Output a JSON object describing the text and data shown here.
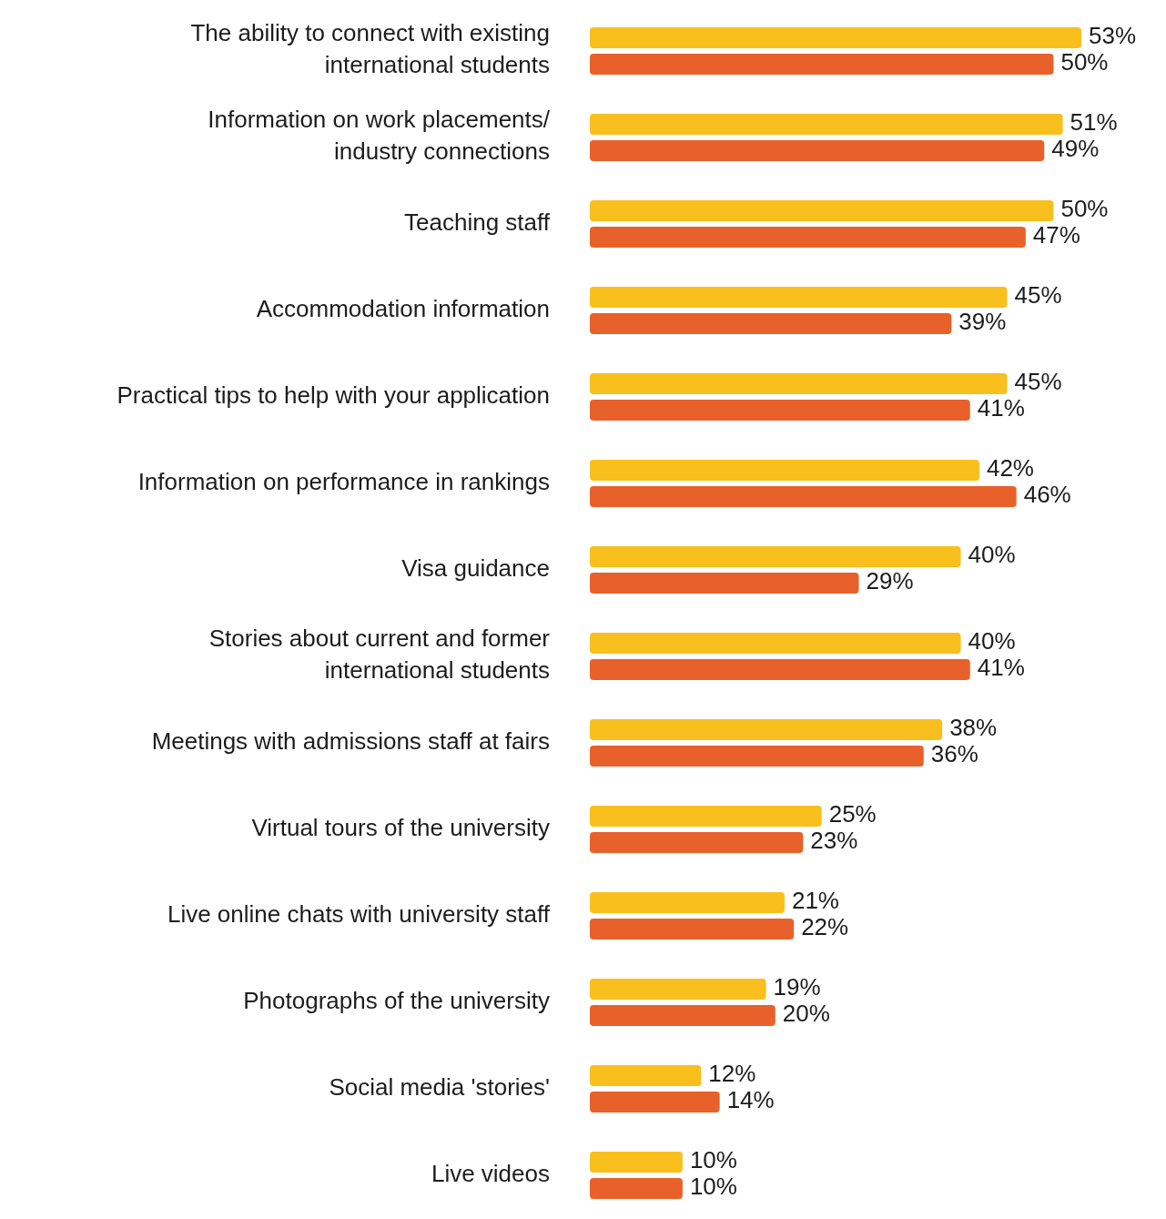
{
  "chart_data": {
    "type": "bar",
    "orientation": "horizontal",
    "categories": [
      "The ability to connect with existing international students",
      "Information on work placements/ industry connections",
      "Teaching staff",
      "Accommodation information",
      "Practical tips to help with your application",
      "Information on performance in rankings",
      "Visa guidance",
      "Stories about current and former international students",
      "Meetings with admissions staff at fairs",
      "Virtual tours of the university",
      "Live online chats with university staff",
      "Photographs of the university",
      "Social media 'stories'",
      "Live videos"
    ],
    "series": [
      {
        "color": "#f9bf1c",
        "values": [
          53,
          51,
          50,
          45,
          45,
          42,
          40,
          40,
          38,
          25,
          21,
          19,
          12,
          10
        ],
        "value_labels": [
          "53%",
          "51%",
          "50%",
          "45%",
          "45%",
          "42%",
          "40%",
          "40%",
          "38%",
          "25%",
          "21%",
          "19%",
          "12%",
          "10%"
        ]
      },
      {
        "color": "#e8612a",
        "values": [
          50,
          49,
          47,
          39,
          41,
          46,
          29,
          41,
          36,
          23,
          22,
          20,
          14,
          10
        ],
        "value_labels": [
          "50%",
          "49%",
          "47%",
          "39%",
          "41%",
          "46%",
          "29%",
          "41%",
          "36%",
          "23%",
          "22%",
          "20%",
          "14%",
          "10%"
        ]
      }
    ]
  }
}
